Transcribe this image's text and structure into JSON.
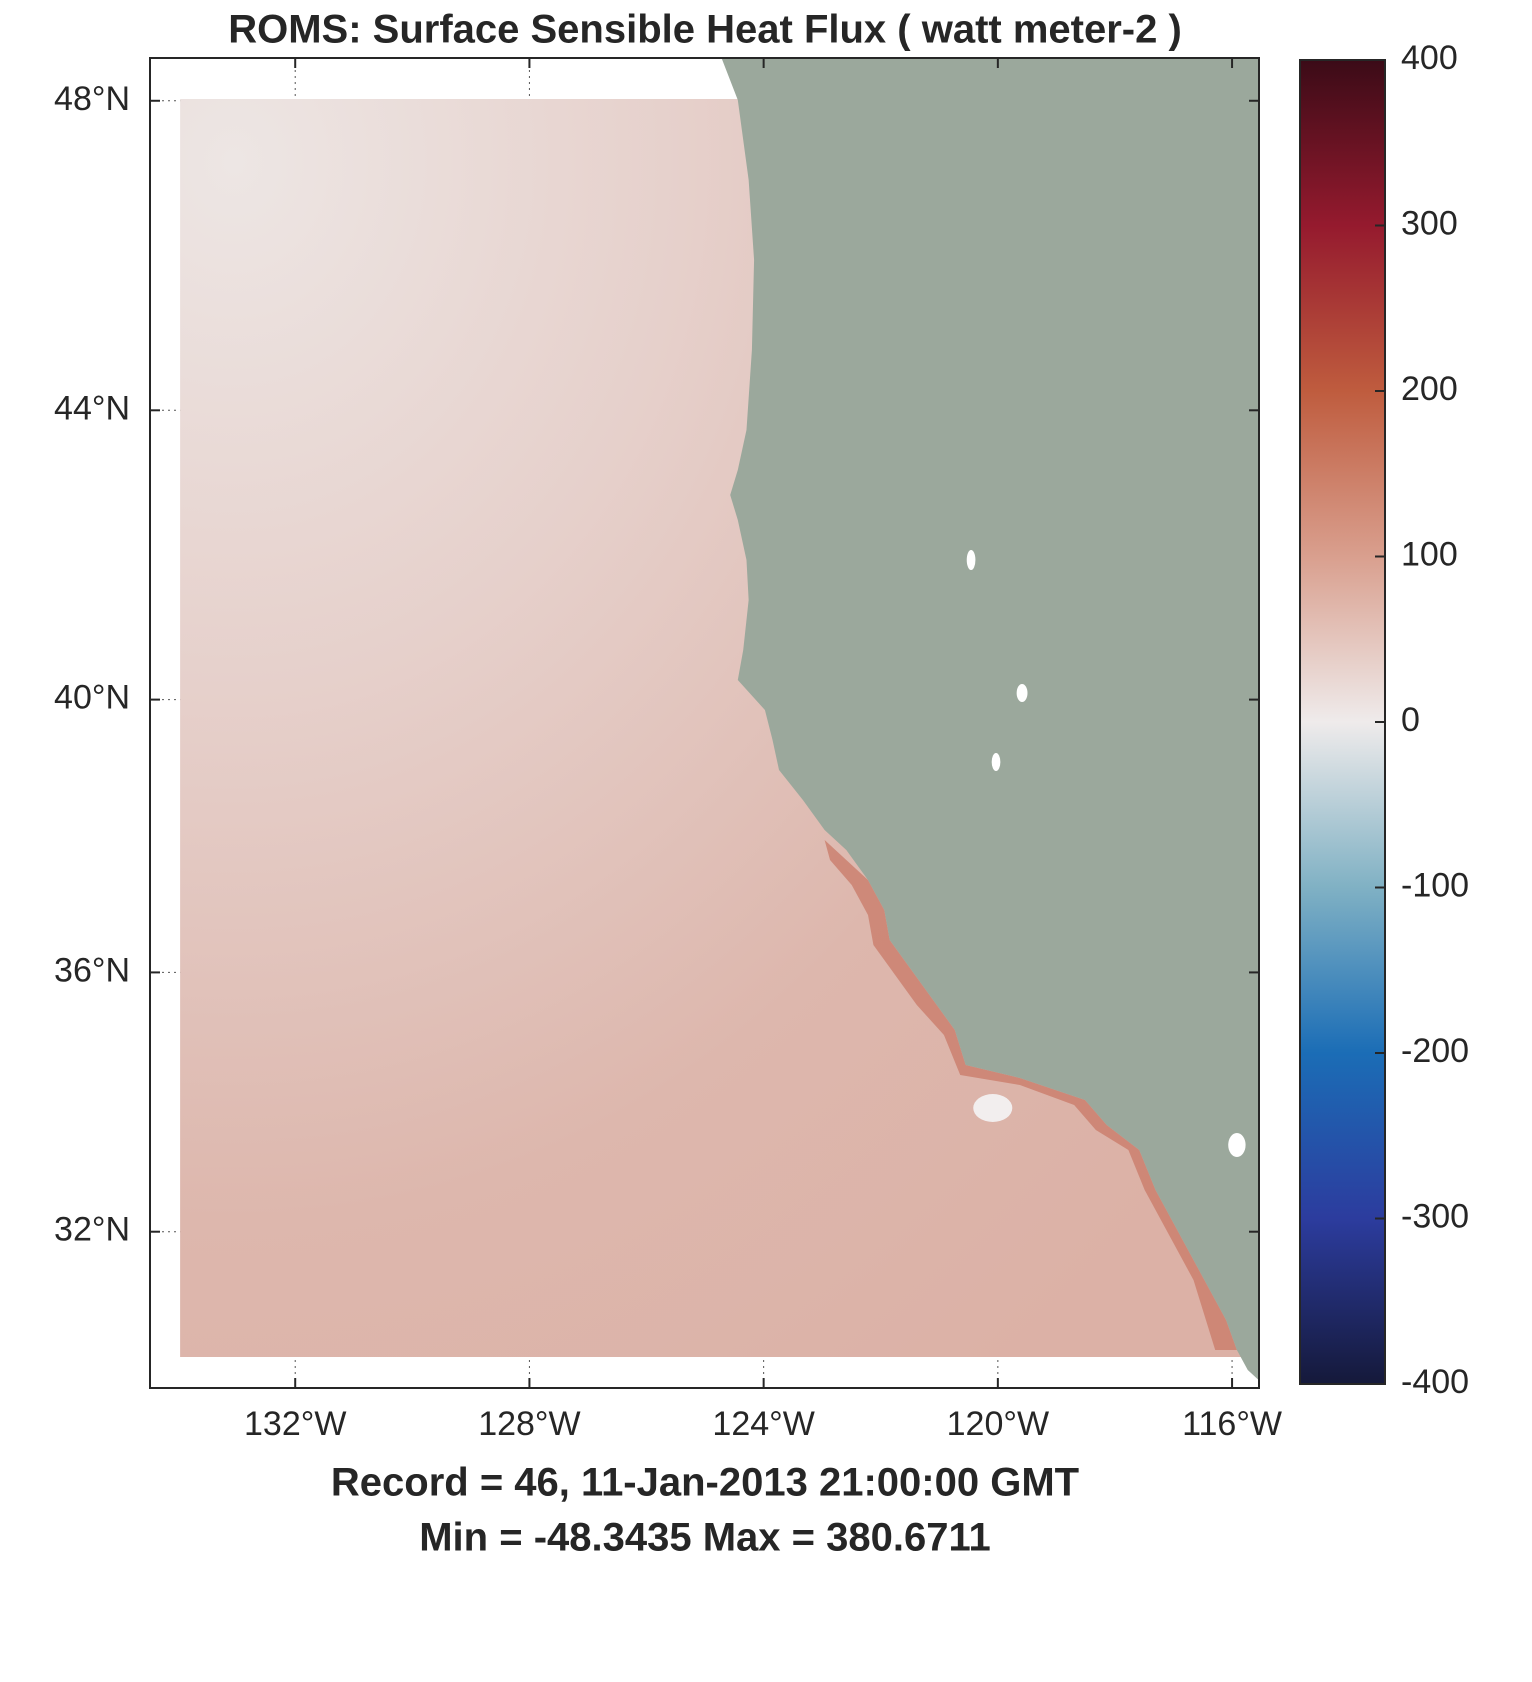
{
  "chart_data": {
    "type": "map",
    "title": "ROMS:  Surface Sensible Heat Flux  ( watt meter-2 )",
    "subtitle": "Record = 46,  11-Jan-2013 21:00:00 GMT",
    "footnote": "Min = -48.3435  Max = 380.6711",
    "xlim": [
      -134.48,
      -115.54
    ],
    "ylim": [
      29.5,
      48.53
    ],
    "xticks": [
      {
        "value": -132,
        "label": "132°W"
      },
      {
        "value": -128,
        "label": "128°W"
      },
      {
        "value": -124,
        "label": "124°W"
      },
      {
        "value": -120,
        "label": "120°W"
      },
      {
        "value": -116,
        "label": "116°W"
      }
    ],
    "yticks": [
      {
        "value": 32,
        "label": "32°N"
      },
      {
        "value": 36,
        "label": "36°N"
      },
      {
        "value": 40,
        "label": "40°N"
      },
      {
        "value": 44,
        "label": "44°N"
      },
      {
        "value": 48,
        "label": "48°N"
      }
    ],
    "projection": "mercator",
    "grid": true,
    "colorbar": {
      "lim": [
        -400,
        400
      ],
      "ticks": [
        -400,
        -300,
        -200,
        -100,
        0,
        100,
        200,
        300,
        400
      ],
      "colors": [
        "#15193a",
        "#2c3c9e",
        "#1b6db6",
        "#80b1c4",
        "#efebeb",
        "#d99f8e",
        "#bf5c3e",
        "#951a2e",
        "#3b0b17"
      ]
    },
    "land_color": "#9ba89c"
  }
}
